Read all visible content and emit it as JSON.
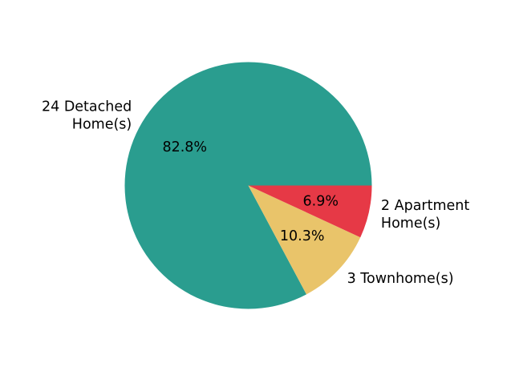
{
  "chart_data": {
    "type": "pie",
    "title": "",
    "start_angle_deg": 0,
    "direction": "counterclockwise",
    "slices": [
      {
        "label_lines": [
          "24 Detached",
          "Home(s)"
        ],
        "count": 24,
        "value": 82.8,
        "pct_label": "82.8%",
        "color": "#2a9d8f"
      },
      {
        "label_lines": [
          "3 Townhome(s)"
        ],
        "count": 3,
        "value": 10.3,
        "pct_label": "10.3%",
        "color": "#e9c46a"
      },
      {
        "label_lines": [
          "2 Apartment",
          "Home(s)"
        ],
        "count": 2,
        "value": 6.9,
        "pct_label": "6.9%",
        "color": "#e63946"
      }
    ]
  }
}
